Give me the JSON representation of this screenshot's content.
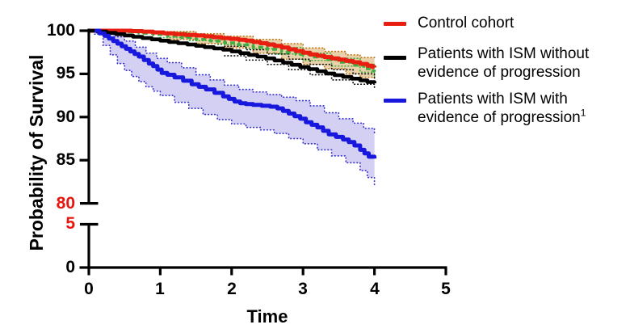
{
  "accent_colors": {
    "control_red": "#e81e10",
    "ism_no_prog_black": "#000000",
    "ism_prog_blue": "#1717dd",
    "unlabeled_green": "#3fae3f",
    "control_ci_tan": "#c07818",
    "blue_ci_fill": "rgba(121,112,219,0.33)",
    "tan_ci_fill": "rgba(204,153,68,0.45)",
    "axis_break_label_red": "#e8150f"
  },
  "legend": {
    "items": [
      {
        "label": "Control cohort",
        "sup": "",
        "color": "#e81e10"
      },
      {
        "label": "Patients with ISM without\nevidence of progression",
        "sup": "",
        "color": "#000000"
      },
      {
        "label": "Patients with ISM with\nevidence of progression",
        "sup": "1",
        "color": "#1717dd"
      }
    ]
  },
  "chart_data": {
    "type": "line",
    "subtype": "kaplan-meier-survival",
    "title": "",
    "xlabel": "Time",
    "ylabel": "Probability of Survival",
    "xlim": [
      0,
      5
    ],
    "y_axis": {
      "break": true,
      "upper_range": [
        80,
        100
      ],
      "lower_range": [
        0,
        5
      ],
      "grid": false
    },
    "x_ticks": [
      {
        "label": "0",
        "t": 0
      },
      {
        "label": "1",
        "t": 1
      },
      {
        "label": "2",
        "t": 2
      },
      {
        "label": "3",
        "t": 3
      },
      {
        "label": "4",
        "t": 4
      },
      {
        "label": "5",
        "t": 5
      }
    ],
    "y_ticks": [
      {
        "label": "100",
        "v": 100,
        "color": "#000000"
      },
      {
        "label": "95",
        "v": 95,
        "color": "#000000"
      },
      {
        "label": "90",
        "v": 90,
        "color": "#000000"
      },
      {
        "label": "85",
        "v": 85,
        "color": "#000000"
      },
      {
        "label": "80",
        "v": 80,
        "color": "#e8150f"
      },
      {
        "label": "5",
        "v": 5,
        "color": "#e8150f"
      },
      {
        "label": "0",
        "v": 0,
        "color": "#000000"
      }
    ],
    "legend_position": "top-right",
    "series": [
      {
        "id": "control",
        "label": "Control cohort",
        "color": "#e81e10",
        "style": "solid",
        "points": [
          [
            0,
            100
          ],
          [
            0.5,
            100
          ],
          [
            0.6,
            99.95
          ],
          [
            0.75,
            99.9
          ],
          [
            0.9,
            99.8
          ],
          [
            1.05,
            99.7
          ],
          [
            1.2,
            99.6
          ],
          [
            1.35,
            99.5
          ],
          [
            1.5,
            99.45
          ],
          [
            1.62,
            99.35
          ],
          [
            1.74,
            99.25
          ],
          [
            1.86,
            99.15
          ],
          [
            1.98,
            99.05
          ],
          [
            2.1,
            98.95
          ],
          [
            2.2,
            98.85
          ],
          [
            2.3,
            98.7
          ],
          [
            2.4,
            98.55
          ],
          [
            2.5,
            98.4
          ],
          [
            2.6,
            98.25
          ],
          [
            2.7,
            98.05
          ],
          [
            2.8,
            97.85
          ],
          [
            2.9,
            97.65
          ],
          [
            3.0,
            97.45
          ],
          [
            3.1,
            97.25
          ],
          [
            3.2,
            97.1
          ],
          [
            3.3,
            96.95
          ],
          [
            3.4,
            96.8
          ],
          [
            3.5,
            96.65
          ],
          [
            3.6,
            96.5
          ],
          [
            3.7,
            96.35
          ],
          [
            3.8,
            96.15
          ],
          [
            3.9,
            95.95
          ],
          [
            3.97,
            95.8
          ],
          [
            4.0,
            95.75
          ]
        ]
      },
      {
        "id": "green_unlabeled",
        "label": "",
        "color": "#3fae3f",
        "style": "dashed",
        "points": [
          [
            0,
            100
          ],
          [
            0.3,
            99.95
          ],
          [
            0.5,
            99.85
          ],
          [
            0.7,
            99.7
          ],
          [
            0.9,
            99.55
          ],
          [
            1.1,
            99.4
          ],
          [
            1.3,
            99.2
          ],
          [
            1.5,
            99.0
          ],
          [
            1.7,
            98.8
          ],
          [
            1.9,
            98.6
          ],
          [
            2.1,
            98.35
          ],
          [
            2.3,
            98.1
          ],
          [
            2.5,
            97.85
          ],
          [
            2.7,
            97.55
          ],
          [
            2.9,
            97.25
          ],
          [
            3.1,
            96.95
          ],
          [
            3.3,
            96.65
          ],
          [
            3.5,
            96.35
          ],
          [
            3.7,
            96.0
          ],
          [
            3.85,
            95.6
          ],
          [
            3.95,
            95.35
          ],
          [
            4.0,
            95.25
          ]
        ]
      },
      {
        "id": "ism_no_prog",
        "label": "Patients with ISM without evidence of progression",
        "color": "#000000",
        "style": "solid",
        "points": [
          [
            0,
            100
          ],
          [
            0.12,
            99.9
          ],
          [
            0.25,
            99.75
          ],
          [
            0.38,
            99.6
          ],
          [
            0.5,
            99.45
          ],
          [
            0.62,
            99.3
          ],
          [
            0.75,
            99.15
          ],
          [
            0.88,
            99.0
          ],
          [
            1.0,
            98.85
          ],
          [
            1.12,
            98.7
          ],
          [
            1.25,
            98.55
          ],
          [
            1.38,
            98.4
          ],
          [
            1.5,
            98.25
          ],
          [
            1.62,
            98.1
          ],
          [
            1.75,
            97.95
          ],
          [
            1.88,
            97.8
          ],
          [
            2.0,
            97.6
          ],
          [
            2.12,
            97.4
          ],
          [
            2.24,
            97.2
          ],
          [
            2.36,
            97.0
          ],
          [
            2.48,
            96.8
          ],
          [
            2.6,
            96.55
          ],
          [
            2.72,
            96.3
          ],
          [
            2.84,
            96.05
          ],
          [
            2.96,
            95.8
          ],
          [
            3.08,
            95.55
          ],
          [
            3.2,
            95.3
          ],
          [
            3.32,
            95.05
          ],
          [
            3.44,
            94.85
          ],
          [
            3.56,
            94.65
          ],
          [
            3.68,
            94.45
          ],
          [
            3.8,
            94.25
          ],
          [
            3.9,
            94.05
          ],
          [
            4.0,
            93.9
          ]
        ]
      },
      {
        "id": "ism_prog",
        "label": "Patients with ISM with evidence of progression",
        "label_superscript": "1",
        "color": "#1717dd",
        "style": "solid",
        "points": [
          [
            0.08,
            100
          ],
          [
            0.15,
            99.7
          ],
          [
            0.22,
            99.4
          ],
          [
            0.28,
            99.1
          ],
          [
            0.34,
            98.8
          ],
          [
            0.4,
            98.5
          ],
          [
            0.46,
            98.2
          ],
          [
            0.52,
            97.9
          ],
          [
            0.58,
            97.6
          ],
          [
            0.64,
            97.3
          ],
          [
            0.7,
            97.0
          ],
          [
            0.77,
            96.6
          ],
          [
            0.84,
            96.2
          ],
          [
            0.9,
            95.9
          ],
          [
            0.96,
            95.5
          ],
          [
            1.02,
            95.1
          ],
          [
            1.1,
            94.9
          ],
          [
            1.2,
            94.6
          ],
          [
            1.32,
            94.2
          ],
          [
            1.44,
            93.8
          ],
          [
            1.54,
            93.5
          ],
          [
            1.64,
            93.2
          ],
          [
            1.76,
            92.8
          ],
          [
            1.88,
            92.4
          ],
          [
            1.96,
            92.1
          ],
          [
            2.04,
            91.8
          ],
          [
            2.12,
            91.6
          ],
          [
            2.2,
            91.5
          ],
          [
            2.3,
            91.4
          ],
          [
            2.42,
            91.3
          ],
          [
            2.54,
            91.2
          ],
          [
            2.64,
            91.0
          ],
          [
            2.72,
            90.7
          ],
          [
            2.8,
            90.4
          ],
          [
            2.88,
            90.1
          ],
          [
            2.96,
            89.8
          ],
          [
            3.04,
            89.4
          ],
          [
            3.12,
            89.1
          ],
          [
            3.2,
            88.8
          ],
          [
            3.28,
            88.4
          ],
          [
            3.36,
            88.0
          ],
          [
            3.46,
            87.7
          ],
          [
            3.56,
            87.4
          ],
          [
            3.64,
            87.1
          ],
          [
            3.72,
            86.7
          ],
          [
            3.8,
            86.2
          ],
          [
            3.86,
            85.8
          ],
          [
            3.92,
            85.4
          ],
          [
            4.0,
            85.2
          ]
        ]
      }
    ],
    "ci_bands": [
      {
        "series": "ism_prog",
        "fill": "rgba(121,112,219,0.33)",
        "edge": "#3a35cf",
        "upper": [
          [
            0.08,
            100
          ],
          [
            0.2,
            99.8
          ],
          [
            0.35,
            99.3
          ],
          [
            0.5,
            98.8
          ],
          [
            0.65,
            98.1
          ],
          [
            0.8,
            97.4
          ],
          [
            0.95,
            96.8
          ],
          [
            1.1,
            96.3
          ],
          [
            1.3,
            95.7
          ],
          [
            1.5,
            94.9
          ],
          [
            1.7,
            94.3
          ],
          [
            1.9,
            93.7
          ],
          [
            2.1,
            93.2
          ],
          [
            2.3,
            92.9
          ],
          [
            2.5,
            92.6
          ],
          [
            2.7,
            92.3
          ],
          [
            2.9,
            91.9
          ],
          [
            3.1,
            91.3
          ],
          [
            3.3,
            90.5
          ],
          [
            3.5,
            89.8
          ],
          [
            3.7,
            89.3
          ],
          [
            3.85,
            88.7
          ],
          [
            4.0,
            88.0
          ]
        ],
        "lower": [
          [
            0.08,
            99.6
          ],
          [
            0.2,
            98.3
          ],
          [
            0.3,
            97.2
          ],
          [
            0.4,
            96.2
          ],
          [
            0.5,
            95.4
          ],
          [
            0.6,
            94.7
          ],
          [
            0.7,
            94.1
          ],
          [
            0.8,
            93.5
          ],
          [
            0.9,
            93.0
          ],
          [
            1.0,
            92.5
          ],
          [
            1.2,
            91.7
          ],
          [
            1.4,
            91.0
          ],
          [
            1.6,
            90.3
          ],
          [
            1.8,
            89.7
          ],
          [
            2.0,
            89.2
          ],
          [
            2.2,
            88.8
          ],
          [
            2.4,
            88.5
          ],
          [
            2.6,
            88.1
          ],
          [
            2.8,
            87.5
          ],
          [
            3.0,
            86.9
          ],
          [
            3.2,
            86.2
          ],
          [
            3.4,
            85.5
          ],
          [
            3.6,
            84.7
          ],
          [
            3.8,
            83.8
          ],
          [
            3.9,
            83.0
          ],
          [
            4.0,
            81.9
          ]
        ]
      },
      {
        "series": "control",
        "fill": "rgba(204,153,68,0.45)",
        "edge": "#c07818",
        "upper": [
          [
            1.1,
            99.9
          ],
          [
            1.5,
            99.65
          ],
          [
            1.9,
            99.35
          ],
          [
            2.3,
            99.0
          ],
          [
            2.7,
            98.5
          ],
          [
            3.0,
            98.0
          ],
          [
            3.3,
            97.6
          ],
          [
            3.6,
            97.2
          ],
          [
            3.8,
            96.9
          ],
          [
            4.0,
            96.6
          ]
        ],
        "lower": [
          [
            1.1,
            99.0
          ],
          [
            1.5,
            98.5
          ],
          [
            1.9,
            98.0
          ],
          [
            2.3,
            97.4
          ],
          [
            2.7,
            96.7
          ],
          [
            3.0,
            96.1
          ],
          [
            3.3,
            95.6
          ],
          [
            3.6,
            95.0
          ],
          [
            3.8,
            94.6
          ],
          [
            4.0,
            94.2
          ]
        ]
      },
      {
        "series": "green_unlabeled",
        "fill": "none",
        "edge": "#3fae3f",
        "upper": [
          [
            1.0,
            99.8
          ],
          [
            1.4,
            99.45
          ],
          [
            1.8,
            99.05
          ],
          [
            2.2,
            98.6
          ],
          [
            2.6,
            98.05
          ],
          [
            3.0,
            97.4
          ],
          [
            3.4,
            96.8
          ],
          [
            3.8,
            96.1
          ],
          [
            4.0,
            95.7
          ]
        ],
        "lower": [
          [
            1.0,
            99.2
          ],
          [
            1.4,
            98.85
          ],
          [
            1.8,
            98.4
          ],
          [
            2.2,
            97.9
          ],
          [
            2.6,
            97.3
          ],
          [
            3.0,
            96.55
          ],
          [
            3.4,
            95.9
          ],
          [
            3.8,
            95.2
          ],
          [
            4.0,
            94.7
          ]
        ]
      },
      {
        "series": "ism_no_prog",
        "fill": "none",
        "edge": "#111111",
        "upper": [
          [
            1.9,
            98.2
          ],
          [
            2.2,
            97.8
          ],
          [
            2.5,
            97.3
          ],
          [
            2.8,
            96.7
          ],
          [
            3.1,
            96.1
          ],
          [
            3.4,
            95.5
          ],
          [
            3.7,
            95.0
          ],
          [
            4.0,
            94.5
          ]
        ],
        "lower": [
          [
            1.9,
            97.1
          ],
          [
            2.2,
            96.6
          ],
          [
            2.5,
            96.1
          ],
          [
            2.8,
            95.5
          ],
          [
            3.1,
            94.9
          ],
          [
            3.4,
            94.3
          ],
          [
            3.7,
            93.8
          ],
          [
            4.0,
            93.3
          ]
        ]
      }
    ]
  }
}
